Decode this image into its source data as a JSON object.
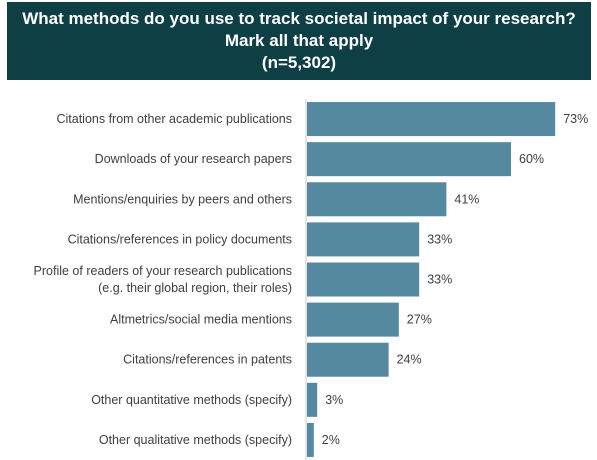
{
  "title": {
    "line1": "What methods do you use to track societal impact of your research?",
    "line2": "Mark all that apply",
    "line3": "(n=5,302)"
  },
  "colors": {
    "title_bg": "#0e3f45",
    "bar": "#5489a0",
    "axis": "#c8c8c8",
    "text": "#404040"
  },
  "chart_data": {
    "type": "bar",
    "orientation": "horizontal",
    "title": "What methods do you use to track societal impact of your research? Mark all that apply (n=5,302)",
    "categories": [
      [
        "Citations from other academic publications"
      ],
      [
        "Downloads of your research papers"
      ],
      [
        "Mentions/enquiries by peers and others"
      ],
      [
        "Citations/references in policy documents"
      ],
      [
        "Profile of readers of your research publications",
        "(e.g. their global region, their roles)"
      ],
      [
        "Altmetrics/social media mentions"
      ],
      [
        "Citations/references in patents"
      ],
      [
        "Other quantitative methods (specify)"
      ],
      [
        "Other qualitative methods (specify)"
      ]
    ],
    "values": [
      73,
      60,
      41,
      33,
      33,
      27,
      24,
      3,
      2
    ],
    "value_labels": [
      "73%",
      "60%",
      "41%",
      "33%",
      "33%",
      "27%",
      "24%",
      "3%",
      "2%"
    ],
    "xlim": [
      0,
      100
    ],
    "grid": false,
    "legend": "none"
  }
}
